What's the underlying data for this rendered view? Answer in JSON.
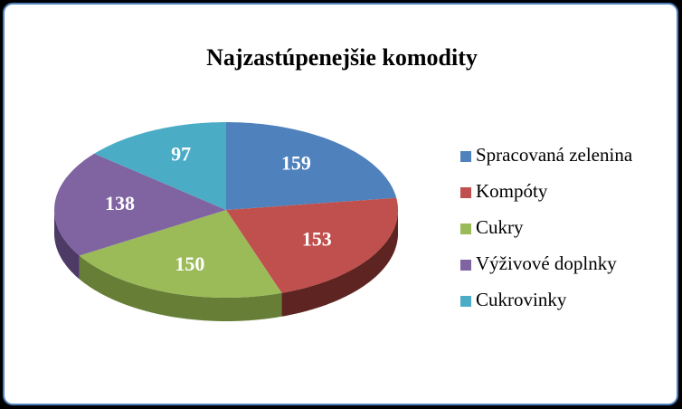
{
  "chart_data": {
    "type": "pie",
    "title": "Najzastúpenejšie komodity",
    "categories": [
      "Spracovaná zelenina",
      "Kompóty",
      "Cukry",
      "Výživové doplnky",
      "Cukrovinky"
    ],
    "values": [
      159,
      153,
      150,
      138,
      97
    ],
    "colors": [
      "#4f81bd",
      "#c0504d",
      "#9bbb59",
      "#8064a2",
      "#4bacc6"
    ],
    "side_colors": [
      "#2c4a73",
      "#5e2422",
      "#667e35",
      "#4d3b66",
      "#2d7488"
    ],
    "legend": "right"
  }
}
